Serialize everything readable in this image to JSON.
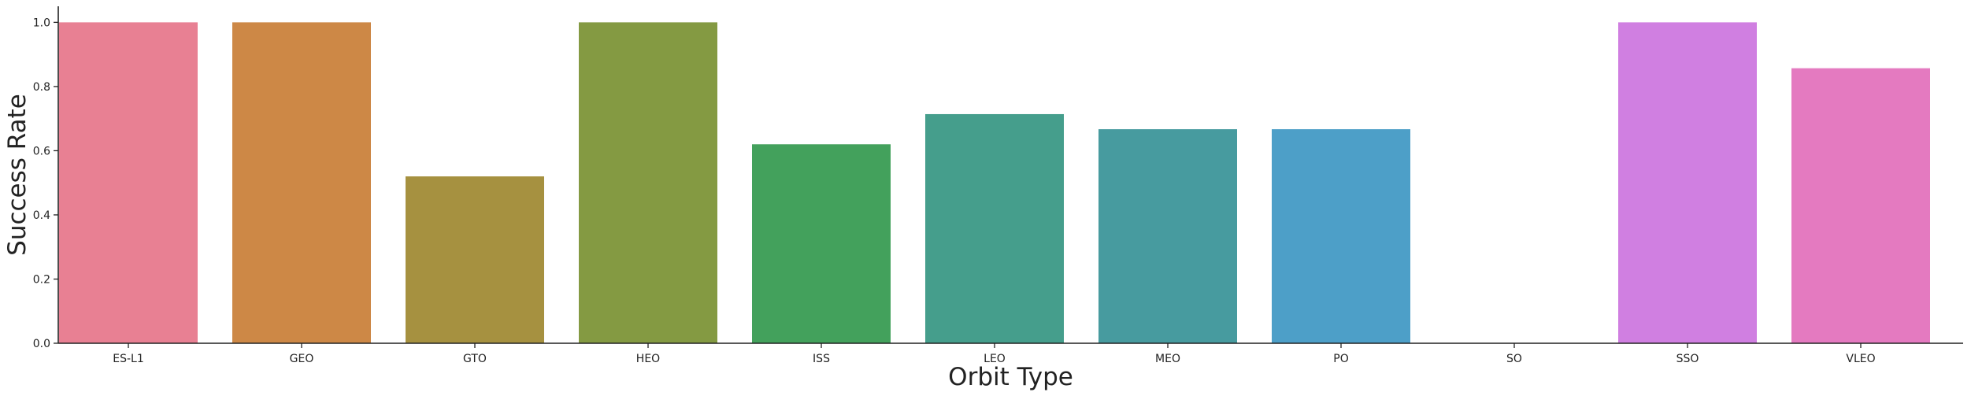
{
  "chart_data": {
    "type": "bar",
    "title": "",
    "xlabel": "Orbit Type",
    "ylabel": "Success Rate",
    "categories": [
      "ES-L1",
      "GEO",
      "GTO",
      "HEO",
      "ISS",
      "LEO",
      "MEO",
      "PO",
      "SO",
      "SSO",
      "VLEO"
    ],
    "values": [
      1.0,
      1.0,
      0.52,
      1.0,
      0.62,
      0.714,
      0.667,
      0.667,
      0.0,
      1.0,
      0.857
    ],
    "colors": [
      "#e88093",
      "#cd8846",
      "#a69140",
      "#849a42",
      "#43a15c",
      "#459e8c",
      "#479b9f",
      "#4d9fc8",
      "#a08ad8",
      "#d07fe1",
      "#e47ac0"
    ],
    "yticks": [
      "0.0",
      "0.2",
      "0.4",
      "0.6",
      "0.8",
      "1.0"
    ],
    "ylim": [
      0,
      1.05
    ],
    "grid": false,
    "legend": "none"
  }
}
